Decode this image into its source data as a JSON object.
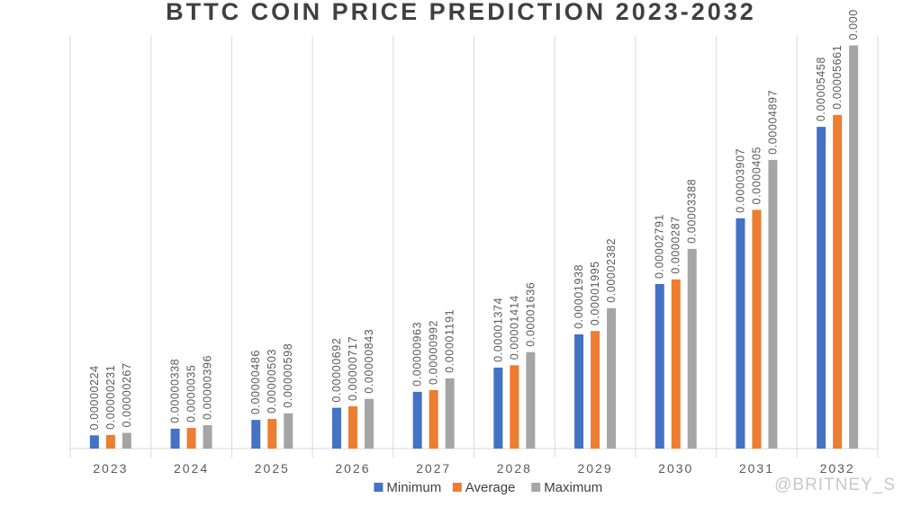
{
  "chart_data": {
    "type": "bar",
    "title": "BTTC COIN PRICE PREDICTION 2023-2032",
    "categories": [
      "2023",
      "2024",
      "2025",
      "2026",
      "2027",
      "2028",
      "2029",
      "2030",
      "2031",
      "2032"
    ],
    "series": [
      {
        "name": "Minimum",
        "color": "#4472c4",
        "values": [
          2.24e-06,
          3.38e-06,
          4.86e-06,
          6.92e-06,
          9.63e-06,
          1.374e-05,
          1.938e-05,
          2.791e-05,
          3.907e-05,
          5.458e-05
        ],
        "value_labels": [
          "0.00000224",
          "0.00000338",
          "0.00000486",
          "0.00000692",
          "0.00000963",
          "0.00001374",
          "0.00001938",
          "0.00002791",
          "0.00003907",
          "0.00005458"
        ]
      },
      {
        "name": "Average",
        "color": "#ed7d31",
        "values": [
          2.31e-06,
          3.5e-06,
          5.03e-06,
          7.17e-06,
          9.92e-06,
          1.414e-05,
          1.995e-05,
          2.87e-05,
          4.05e-05,
          5.661e-05
        ],
        "value_labels": [
          "0.00000231",
          "0.0000035",
          "0.00000503",
          "0.00000717",
          "0.00000992",
          "0.00001414",
          "0.00001995",
          "0.0000287",
          "0.0000405",
          "0.00005661"
        ]
      },
      {
        "name": "Maximum",
        "color": "#a5a5a5",
        "values": [
          2.67e-06,
          3.96e-06,
          5.98e-06,
          8.43e-06,
          1.191e-05,
          1.636e-05,
          2.382e-05,
          3.388e-05,
          4.897e-05,
          6.84e-05
        ],
        "value_labels": [
          "0.00000267",
          "0.00000396",
          "0.00000598",
          "0.00000843",
          "0.00001191",
          "0.00001636",
          "0.00002382",
          "0.00003388",
          "0.00004897",
          "0.000"
        ]
      }
    ],
    "ylim": [
      0,
      7e-05
    ],
    "legend": "bottom",
    "watermark": "@BRITNEY_S"
  }
}
